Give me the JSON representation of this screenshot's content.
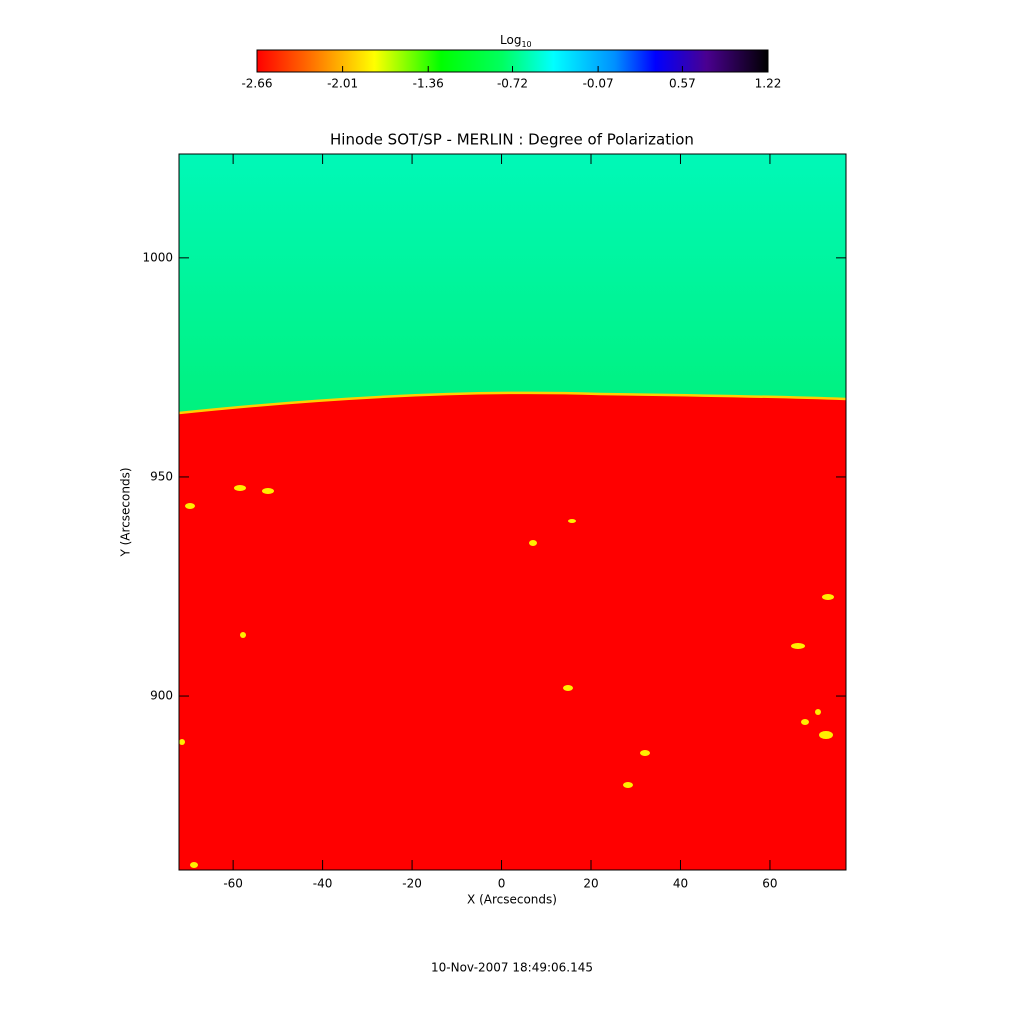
{
  "chart_data": {
    "type": "image",
    "title": "Hinode SOT/SP - MERLIN : Degree of Polarization",
    "x_label": "X (Arcseconds)",
    "y_label": "Y (Arcseconds)",
    "xlim": [
      -72.1,
      77
    ],
    "xticks": [
      -60,
      -40,
      -20,
      0,
      20,
      40,
      60
    ],
    "ylim": [
      860.3,
      1023.7
    ],
    "yticks": [
      900,
      950,
      1000
    ],
    "colorbar": {
      "label": "Log",
      "label_sub": "10",
      "clim": [
        -2.66,
        1.22
      ],
      "ticks": [
        -2.66,
        -2.01,
        -1.36,
        -0.72,
        -0.07,
        0.57,
        1.22
      ]
    },
    "timestamp": "10-Nov-2007 18:49:06.145"
  }
}
